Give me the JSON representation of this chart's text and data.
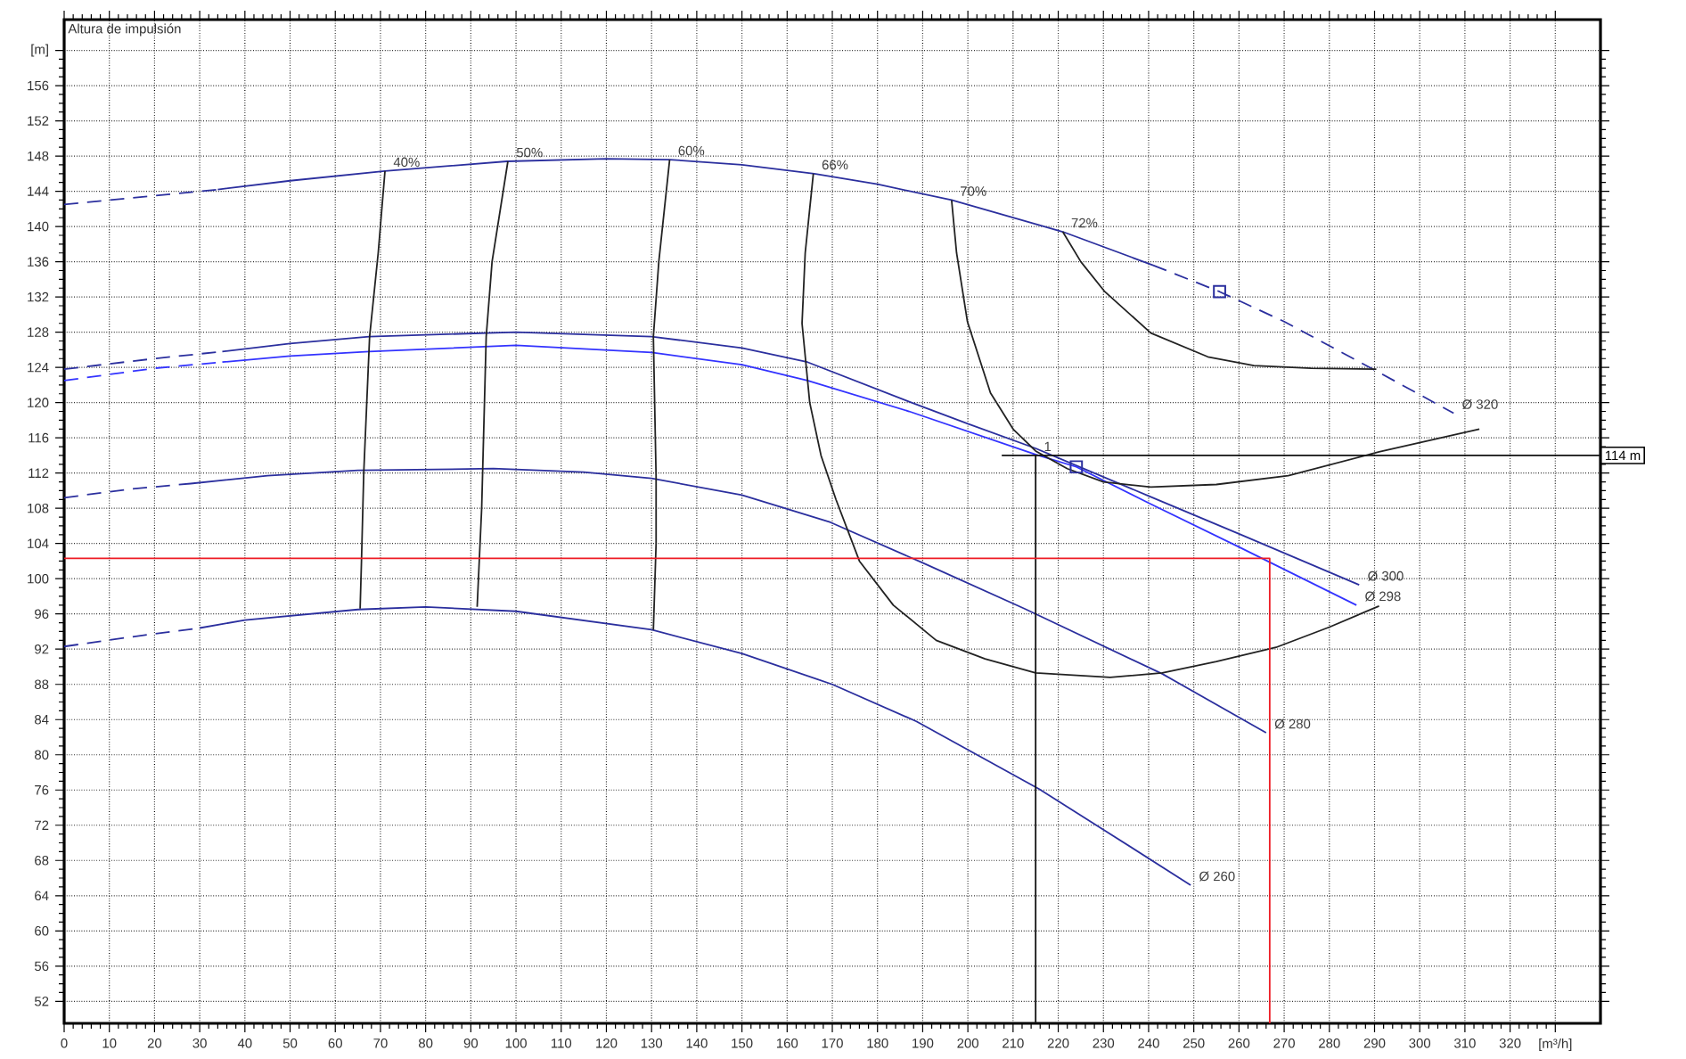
{
  "chart_data": {
    "type": "line",
    "ylabel": "Altura de impulsión",
    "xlim": [
      0,
      340
    ],
    "ylim": [
      49.5,
      163.5
    ],
    "xticks": [
      0,
      10,
      20,
      30,
      40,
      50,
      60,
      70,
      80,
      90,
      100,
      110,
      120,
      130,
      140,
      150,
      160,
      170,
      180,
      190,
      200,
      210,
      220,
      230,
      240,
      250,
      260,
      270,
      280,
      290,
      300,
      310,
      320,
      {
        "value": 330,
        "label": "[m³/h]"
      }
    ],
    "yticks": [
      52,
      56,
      60,
      64,
      68,
      72,
      76,
      80,
      84,
      88,
      92,
      96,
      100,
      104,
      108,
      112,
      116,
      120,
      124,
      128,
      132,
      136,
      140,
      144,
      148,
      152,
      156,
      {
        "value": 160,
        "label": "[m]"
      }
    ],
    "grid": true,
    "series": [
      {
        "line_style": "dashed",
        "color": "#2b2f9e",
        "x": [
          0,
          20,
          34
        ],
        "values": [
          142.5,
          143.5,
          144.2
        ]
      },
      {
        "line_style": "solid",
        "color": "#2b2f9e",
        "x": [
          34,
          50,
          71,
          98,
          120,
          134,
          150,
          166,
          180,
          196.4,
          210,
          221,
          241
        ],
        "values": [
          144.2,
          145.2,
          146.3,
          147.4,
          147.7,
          147.6,
          147,
          146,
          144.8,
          143,
          141,
          139.4,
          135.6
        ]
      },
      {
        "line_style": "dashed",
        "color": "#2b2f9e",
        "x": [
          241,
          255.7,
          270,
          290,
          307.5
        ],
        "values": [
          135.6,
          132.6,
          129.2,
          123.7,
          118.8
        ]
      },
      {
        "line_style": "dashed",
        "color": "#2b2f9e",
        "x": [
          0,
          20,
          35
        ],
        "values": [
          123.8,
          125,
          125.8
        ]
      },
      {
        "line_style": "solid",
        "color": "#2b2f9e",
        "x": [
          35,
          50,
          67.5,
          100,
          130,
          150,
          164.5,
          187,
          200,
          215,
          240,
          260,
          286.6
        ],
        "values": [
          125.8,
          126.7,
          127.5,
          128,
          127.5,
          126.2,
          124.6,
          120.1,
          117.6,
          114.8,
          109.4,
          105.1,
          99.3
        ]
      },
      {
        "line_style": "dashed",
        "color": "#3333ff",
        "x": [
          0,
          20,
          35
        ],
        "values": [
          122.5,
          123.9,
          124.6
        ]
      },
      {
        "line_style": "solid",
        "color": "#3333ff",
        "x": [
          35,
          50,
          67.5,
          100,
          130,
          150,
          164.5,
          187,
          215,
          224,
          240,
          260,
          286
        ],
        "values": [
          124.6,
          125.3,
          125.8,
          126.5,
          125.7,
          124.3,
          122.5,
          119,
          114.1,
          112.7,
          108.6,
          103.6,
          97
        ]
      },
      {
        "line_style": "dashed",
        "color": "#2b2f9e",
        "x": [
          0,
          15,
          28
        ],
        "values": [
          109.2,
          110.2,
          110.8
        ]
      },
      {
        "line_style": "solid",
        "color": "#2b2f9e",
        "x": [
          28,
          45,
          65,
          95,
          115,
          130,
          150,
          169.6,
          190,
          212.5,
          243,
          266
        ],
        "values": [
          110.8,
          111.7,
          112.3,
          112.5,
          112.1,
          111.4,
          109.5,
          106.4,
          101.8,
          96.6,
          89.2,
          82.5
        ]
      },
      {
        "line_style": "dashed",
        "color": "#2b2f9e",
        "x": [
          0,
          15,
          30
        ],
        "values": [
          92.3,
          93.4,
          94.4
        ]
      },
      {
        "line_style": "solid",
        "color": "#2b2f9e",
        "x": [
          30,
          40,
          65,
          80,
          100,
          130,
          150,
          170,
          188.6,
          215.8,
          230.3,
          249.3
        ],
        "values": [
          94.4,
          95.3,
          96.5,
          96.8,
          96.3,
          94.2,
          91.5,
          88,
          83.8,
          76.1,
          71.4,
          65.2
        ]
      },
      {
        "line_style": "solid",
        "color": "#222222",
        "x": [
          71,
          69.5,
          67.6,
          66.3,
          65.8,
          65.5
        ],
        "values": [
          146.3,
          137,
          127.5,
          112,
          102,
          96.6
        ]
      },
      {
        "line_style": "solid",
        "color": "#222222",
        "x": [
          98.2,
          94.7,
          93.4,
          92.4,
          91.4
        ],
        "values": [
          147.4,
          136,
          127.5,
          108,
          96.8
        ]
      },
      {
        "line_style": "solid",
        "color": "#222222",
        "x": [
          134,
          131.6,
          130.4,
          131,
          131,
          130.4
        ],
        "values": [
          147.6,
          136,
          127.5,
          111.5,
          104,
          94.2
        ]
      },
      {
        "line_style": "solid",
        "color": "#222222",
        "x": [
          165.8,
          164,
          163.3,
          165,
          167.5,
          170.8,
          176,
          183.5,
          193,
          203.8,
          215,
          231.5,
          243,
          255,
          268.2,
          280,
          291
        ],
        "values": [
          146,
          137,
          129,
          120,
          114,
          109,
          102,
          97,
          93,
          90.9,
          89.3,
          88.8,
          89.3,
          90.6,
          92.2,
          94.5,
          96.9
        ]
      },
      {
        "line_style": "solid",
        "color": "#222222",
        "x": [
          196.4,
          197.5,
          199.9,
          205,
          210,
          215,
          222,
          230,
          240.5,
          255,
          270.9,
          291,
          313.2
        ],
        "values": [
          143,
          137,
          129.2,
          121.1,
          117,
          114.5,
          112.5,
          111,
          110.4,
          110.7,
          111.7,
          114.4,
          117
        ]
      },
      {
        "line_style": "solid",
        "color": "#222222",
        "x": [
          221,
          225,
          230.3,
          240.5,
          253.1,
          263.3,
          276,
          290.4
        ],
        "values": [
          139.4,
          136,
          132.6,
          127.9,
          125.2,
          124.2,
          123.9,
          123.8
        ]
      },
      {
        "line_style": "solid",
        "color": "#111111",
        "x": [
          207.5,
          340
        ],
        "values": [
          114,
          114
        ]
      },
      {
        "line_style": "solid",
        "color": "#111111",
        "x": [
          215,
          215
        ],
        "values": [
          114,
          49.5
        ]
      },
      {
        "line_style": "solid",
        "color": "#ee1c25",
        "x": [
          0,
          266.8,
          266.8
        ],
        "values": [
          102.3,
          102.3,
          49.5
        ]
      },
      {
        "type": "scatter",
        "marker": "square",
        "color": "#2b2f9e",
        "x": [
          255.7,
          224
        ],
        "values": [
          132.6,
          112.7
        ]
      }
    ],
    "annotations": [
      {
        "text": "40%",
        "x": 71,
        "y": 146.3
      },
      {
        "text": "50%",
        "x": 98.2,
        "y": 147.4
      },
      {
        "text": "60%",
        "x": 134,
        "y": 147.6
      },
      {
        "text": "66%",
        "x": 165.8,
        "y": 146
      },
      {
        "text": "70%",
        "x": 196.4,
        "y": 143
      },
      {
        "text": "72%",
        "x": 221,
        "y": 139.4
      },
      {
        "text": "Ø 320",
        "x": 307.5,
        "y": 118.8
      },
      {
        "text": "Ø 300",
        "x": 286.6,
        "y": 99.3
      },
      {
        "text": "Ø 298",
        "x": 286,
        "y": 97
      },
      {
        "text": "Ø 280",
        "x": 266,
        "y": 82.5
      },
      {
        "text": "Ø 260",
        "x": 249.3,
        "y": 65.2
      },
      {
        "text": "1",
        "x": 215,
        "y": 114
      },
      {
        "text": "114 m",
        "x": 340,
        "y": 114
      }
    ]
  }
}
